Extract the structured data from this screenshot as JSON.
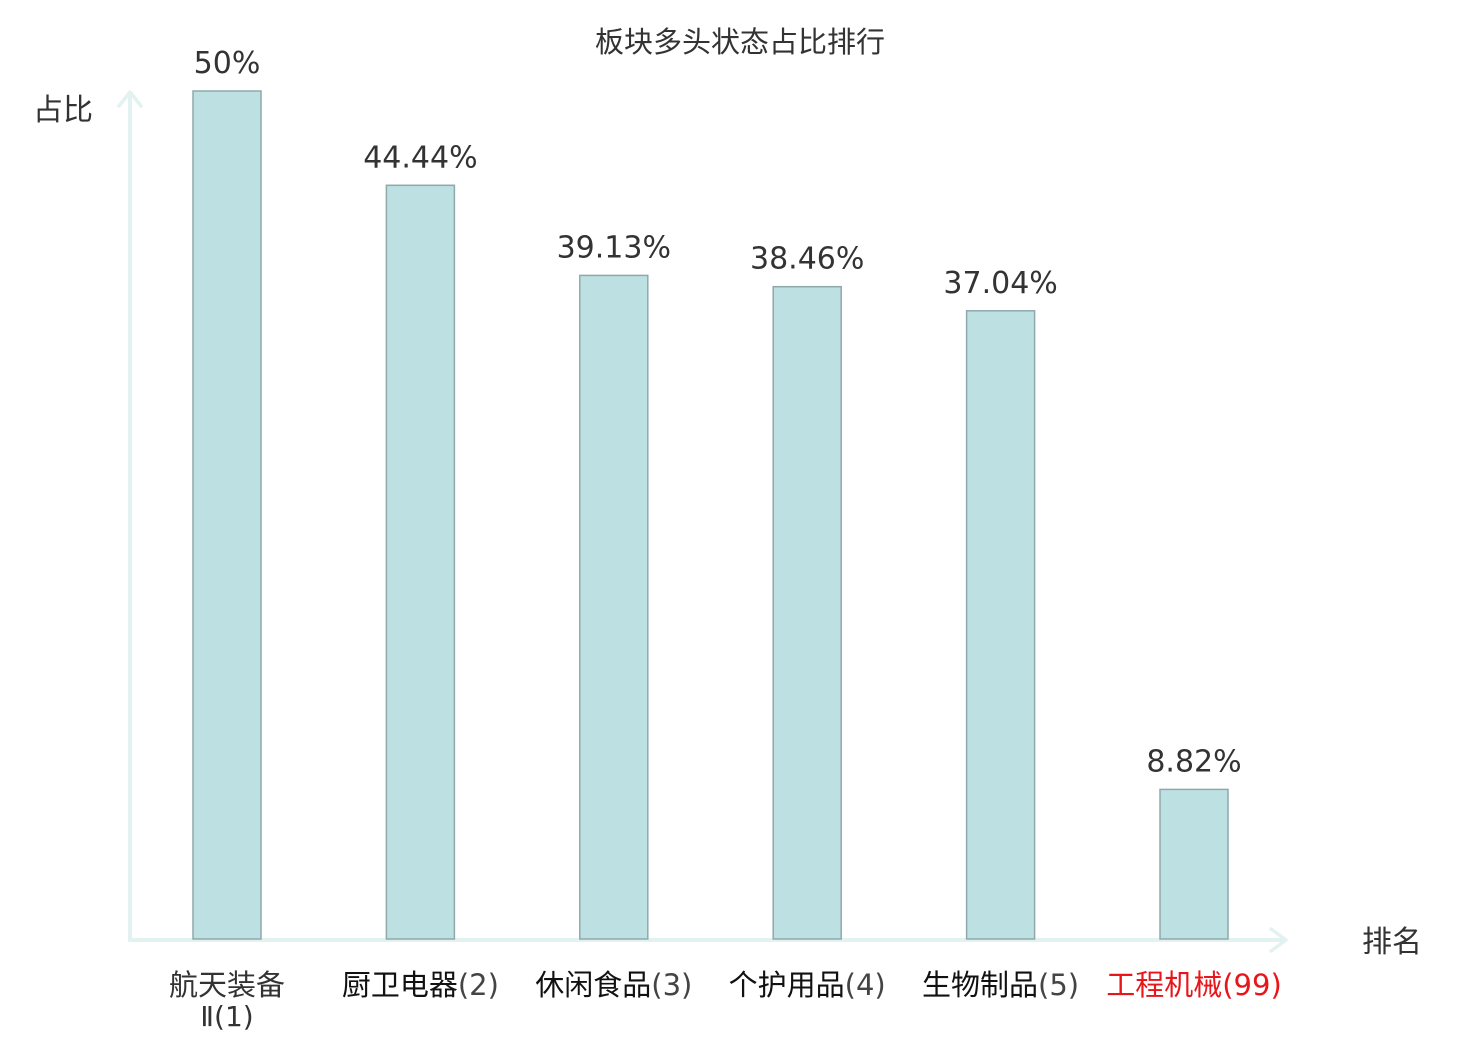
{
  "chart_data": {
    "type": "bar",
    "title": "板块多头状态占比排行",
    "xlabel": "排名",
    "ylabel": "占比",
    "ylim": [
      0,
      50
    ],
    "grid": false,
    "legend": "none",
    "categories": [
      {
        "name": "航天装备Ⅱ",
        "rank": "(1)",
        "highlight": false
      },
      {
        "name": "厨卫电器",
        "rank": "(2)",
        "highlight": false
      },
      {
        "name": "休闲食品",
        "rank": "(3)",
        "highlight": false
      },
      {
        "name": "个护用品",
        "rank": "(4)",
        "highlight": false
      },
      {
        "name": "生物制品",
        "rank": "(5)",
        "highlight": false
      },
      {
        "name": "工程机械",
        "rank": "(99)",
        "highlight": true
      }
    ],
    "values": [
      50,
      44.44,
      39.13,
      38.46,
      37.04,
      8.82
    ],
    "value_labels": [
      "50%",
      "44.44%",
      "39.13%",
      "38.46%",
      "37.04%",
      "8.82%"
    ],
    "colors": {
      "bar_fill": "#bde0e2",
      "bar_stroke": "#8fa9ab",
      "axis": "#e2f2f0",
      "label": "#333333",
      "highlight": "#e8161b"
    }
  }
}
